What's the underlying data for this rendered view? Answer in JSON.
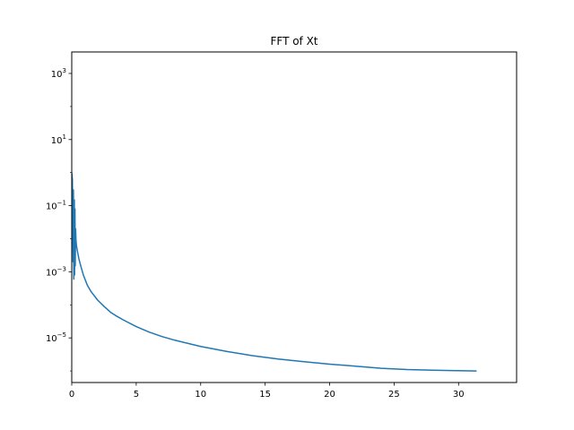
{
  "chart_data": {
    "type": "line",
    "title": "FFT of Xt",
    "xlabel": "",
    "ylabel": "",
    "yscale": "log",
    "xlim": [
      0,
      34.5
    ],
    "ylim_exponent": [
      -6.35,
      3.65
    ],
    "grid": false,
    "legend": "none",
    "x_ticks": [
      0,
      5,
      10,
      15,
      20,
      25,
      30
    ],
    "x_tick_labels": [
      "0",
      "5",
      "10",
      "15",
      "20",
      "25",
      "30"
    ],
    "y_ticks": [
      {
        "base": "10",
        "exp": "3",
        "exponent": 3
      },
      {
        "base": "10",
        "exp": "1",
        "exponent": 1
      },
      {
        "base": "10",
        "exp": "−1",
        "exponent": -1
      },
      {
        "base": "10",
        "exp": "−3",
        "exponent": -3
      },
      {
        "base": "10",
        "exp": "−5",
        "exponent": -5
      }
    ],
    "series": [
      {
        "color": "#1f77b4",
        "x": [
          0.0,
          0.05,
          0.1,
          0.13,
          0.16,
          0.2,
          0.22,
          0.25,
          0.27,
          0.3,
          0.33,
          0.37,
          0.45,
          0.55,
          0.7,
          0.9,
          1.2,
          1.5,
          2.0,
          2.5,
          3.0,
          3.5,
          4.0,
          5.0,
          6.0,
          7.0,
          8.0,
          10.0,
          12.0,
          14.0,
          16.0,
          18.0,
          20.0,
          22.0,
          24.0,
          26.0,
          28.0,
          30.0,
          31.4
        ],
        "y": [
          1.0,
          0.6,
          0.002,
          0.3,
          0.0006,
          0.15,
          0.0008,
          0.08,
          0.0015,
          0.02,
          0.009,
          0.006,
          0.004,
          0.0025,
          0.0015,
          0.0008,
          0.0004,
          0.00025,
          0.00014,
          9e-05,
          6e-05,
          4.5e-05,
          3.5e-05,
          2.2e-05,
          1.5e-05,
          1.1e-05,
          8.5e-06,
          5.5e-06,
          3.9e-06,
          2.9e-06,
          2.3e-06,
          1.9e-06,
          1.6e-06,
          1.4e-06,
          1.2e-06,
          1.1e-06,
          1.05e-06,
          1.02e-06,
          1e-06
        ]
      }
    ]
  }
}
